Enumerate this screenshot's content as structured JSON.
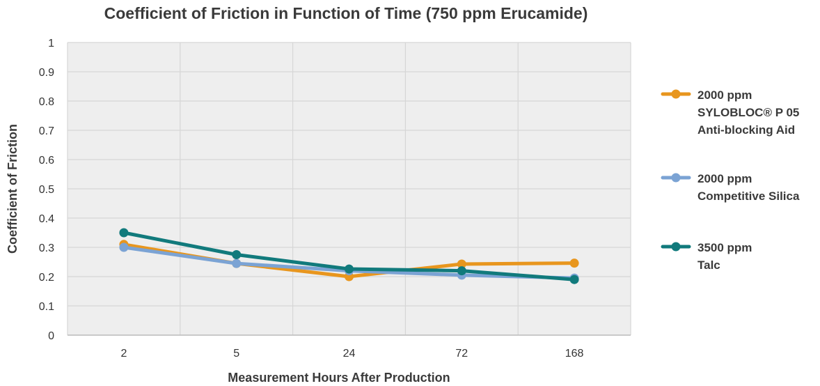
{
  "chart_data": {
    "type": "line",
    "title": "Coefficient of Friction in Function of Time (750 ppm Erucamide)",
    "xlabel": "Measurement Hours After Production",
    "ylabel": "Coefficient of Friction",
    "categories": [
      "2",
      "5",
      "24",
      "72",
      "168"
    ],
    "ylim": [
      0,
      1
    ],
    "yticks": [
      "0",
      "0.1",
      "0.2",
      "0.3",
      "0.4",
      "0.5",
      "0.6",
      "0.7",
      "0.8",
      "0.9",
      "1"
    ],
    "grid": true,
    "legend_position": "right",
    "series": [
      {
        "name": "2000 ppm SYLOBLOC® P 05 Anti-blocking Aid",
        "legend_lines": [
          "2000 ppm",
          "SYLOBLOC® P 05",
          "Anti-blocking Aid"
        ],
        "color": "#E8961E",
        "values": [
          0.31,
          0.245,
          0.2,
          0.243,
          0.246
        ]
      },
      {
        "name": "2000 ppm Competitive Silica",
        "legend_lines": [
          "2000 ppm",
          "Competitive Silica"
        ],
        "color": "#7BA3D4",
        "values": [
          0.3,
          0.245,
          0.22,
          0.205,
          0.195
        ]
      },
      {
        "name": "3500 ppm Talc",
        "legend_lines": [
          "3500 ppm",
          "Talc"
        ],
        "color": "#117A7C",
        "values": [
          0.35,
          0.275,
          0.226,
          0.22,
          0.19
        ]
      }
    ],
    "colors": {
      "plot_background": "#EEEEEE",
      "grid": "#D6D6D6"
    }
  }
}
